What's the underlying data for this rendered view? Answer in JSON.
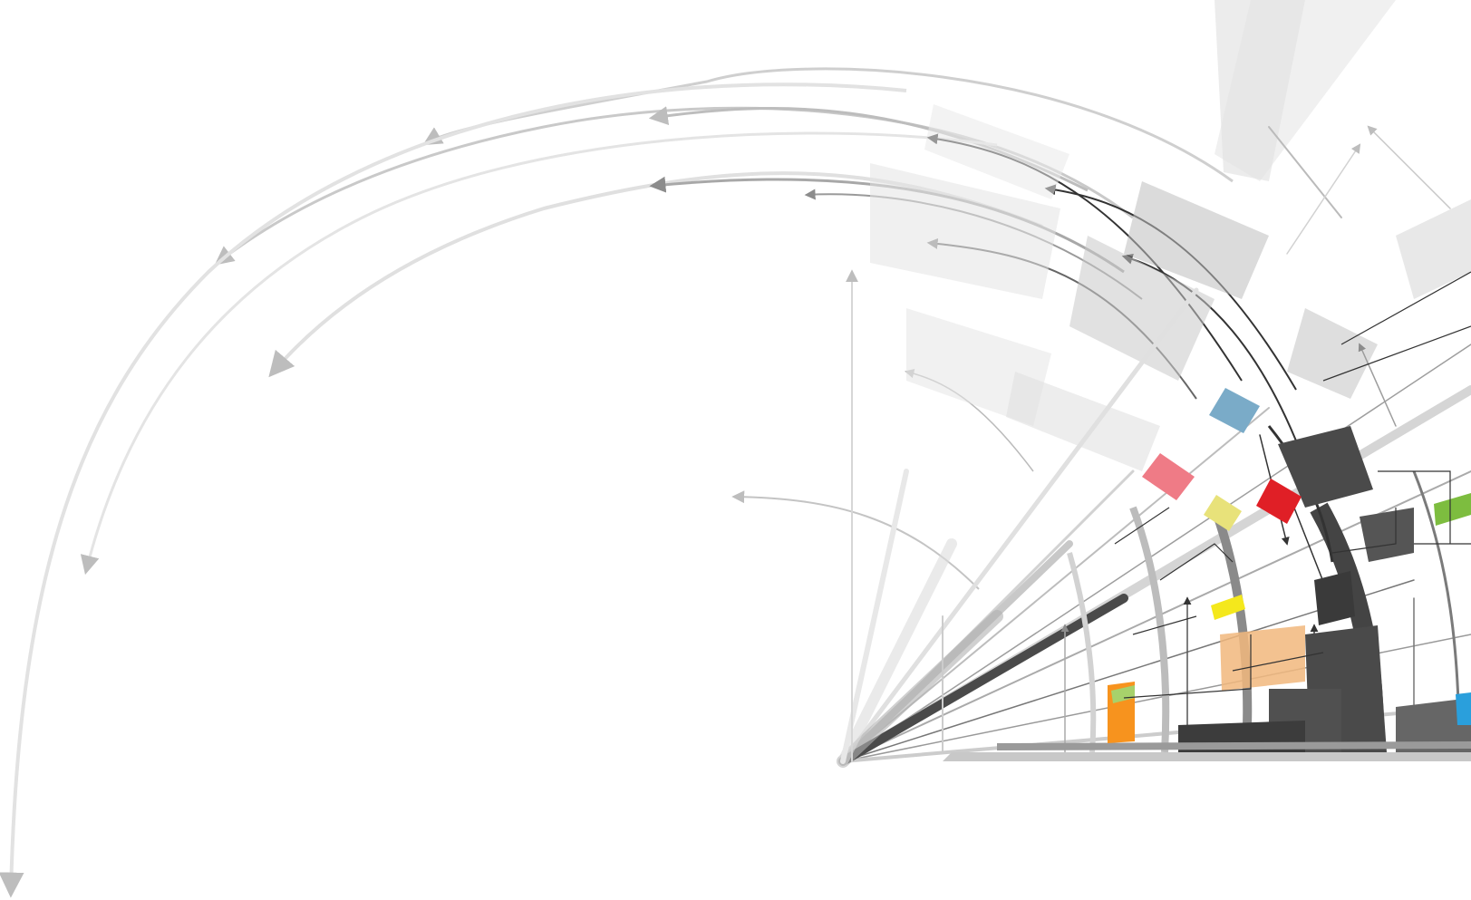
{
  "artwork": {
    "palette": {
      "background": "#ffffff",
      "light_gray": "#e6e6e6",
      "mid_gray": "#c2c2c2",
      "gray": "#9a9a9a",
      "dark_gray": "#4a4a4a",
      "near_black": "#222222",
      "blue": "#7aabc8",
      "pink": "#ef7b86",
      "red": "#e01f26",
      "yellow_light": "#e8e27a",
      "yellow": "#f4e81c",
      "orange": "#f7931e",
      "tan": "#f1b77d",
      "green": "#7dbd3f",
      "sky_blue": "#2a9fdc"
    },
    "icons": [
      "arrowhead-icon"
    ]
  }
}
